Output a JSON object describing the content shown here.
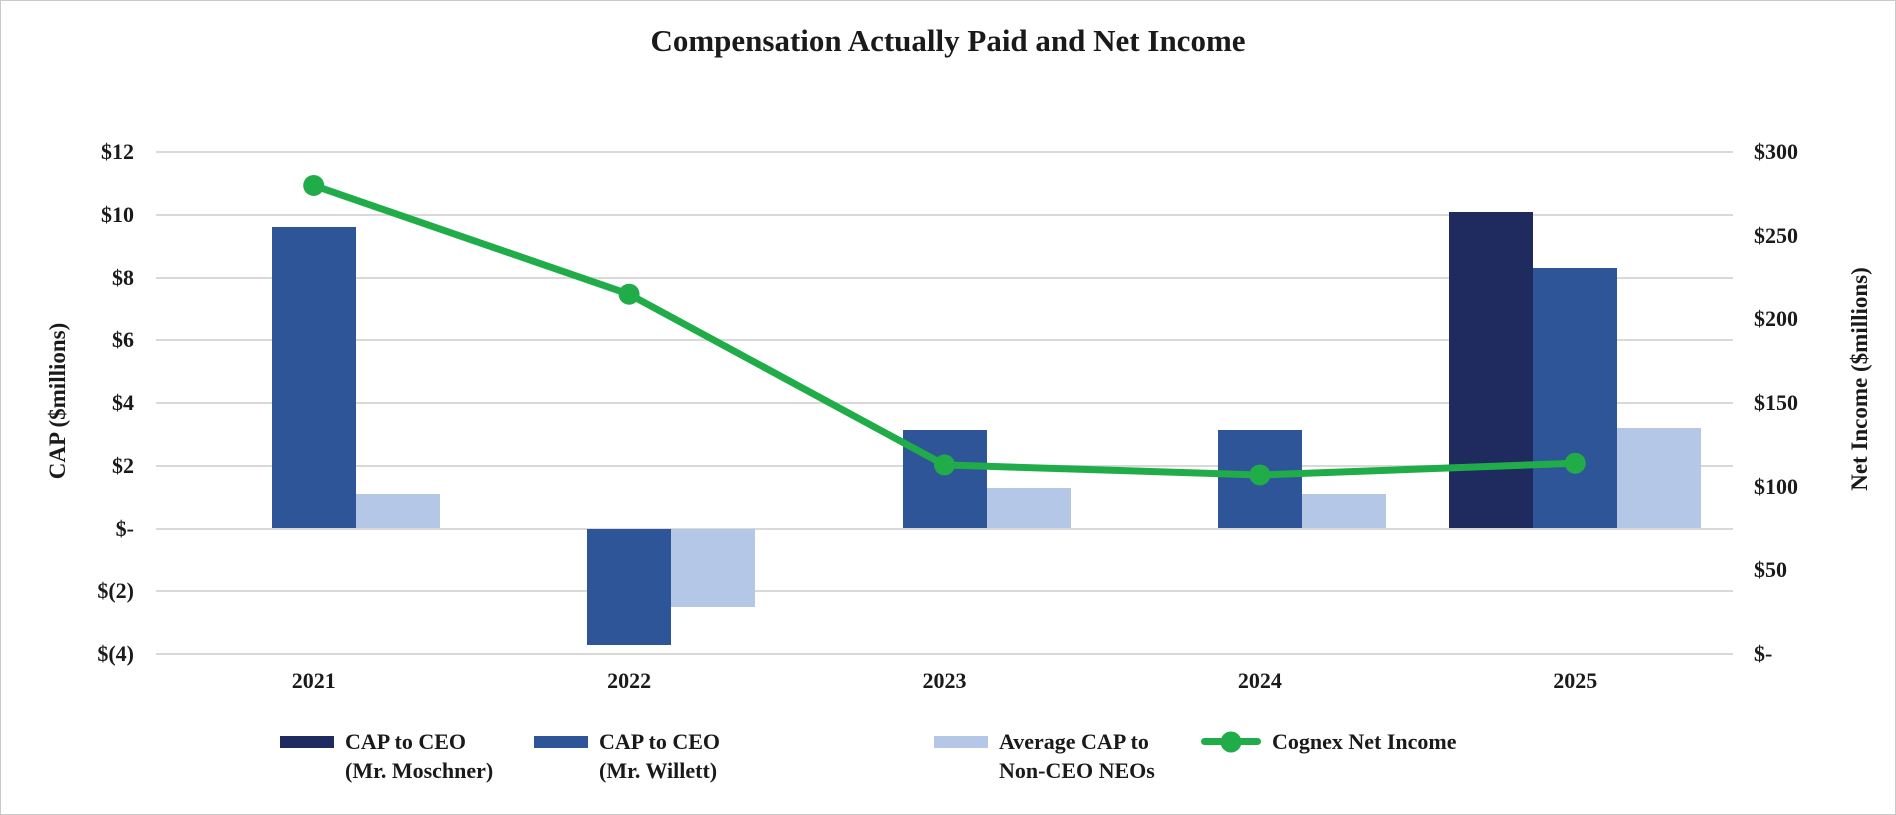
{
  "title": "Compensation Actually Paid and Net Income",
  "chart_data": {
    "type": "bar",
    "subtype": "combo-bar-line-dual-axis",
    "categories": [
      "2021",
      "2022",
      "2023",
      "2024",
      "2025"
    ],
    "series": [
      {
        "name": "CAP to CEO (Mr. Moschner)",
        "type": "bar",
        "axis": "left",
        "color": "#1f2a5f",
        "values": [
          null,
          null,
          null,
          null,
          10.1
        ]
      },
      {
        "name": "CAP to CEO (Mr. Willett)",
        "type": "bar",
        "axis": "left",
        "color": "#2e5597",
        "values": [
          9.6,
          -3.7,
          3.15,
          3.15,
          8.3
        ]
      },
      {
        "name": "Average CAP to Non-CEO NEOs",
        "type": "bar",
        "axis": "left",
        "color": "#b4c7e7",
        "values": [
          1.1,
          -2.5,
          1.3,
          1.1,
          3.2
        ]
      },
      {
        "name": "Cognex Net Income",
        "type": "line",
        "axis": "right",
        "color": "#21ac4a",
        "values": [
          280,
          215,
          113,
          107,
          114
        ]
      }
    ],
    "title": "Compensation Actually Paid and Net Income",
    "left_axis": {
      "title": "CAP ($millions)",
      "ticks": [
        "$12",
        "$10",
        "$8",
        "$6",
        "$4",
        "$2",
        "$-",
        "$(2)",
        "$(4)"
      ],
      "tick_values": [
        12,
        10,
        8,
        6,
        4,
        2,
        0,
        -2,
        -4
      ],
      "min": -4,
      "max": 12
    },
    "right_axis": {
      "title": "Net Income ($millions)",
      "ticks": [
        "$300",
        "$250",
        "$200",
        "$150",
        "$100",
        "$50",
        "$-"
      ],
      "tick_values": [
        300,
        250,
        200,
        150,
        100,
        50,
        0
      ],
      "min": 0,
      "max": 300
    },
    "grid": true,
    "gridline_color": "#d9d9d9",
    "legend_position": "bottom"
  },
  "legend": {
    "items": [
      {
        "id": "cap-ceo-moschner",
        "lines": [
          "CAP to CEO",
          "(Mr. Moschner)"
        ],
        "swatch": "bar",
        "color": "#1f2a5f"
      },
      {
        "id": "cap-ceo-willett",
        "lines": [
          "CAP to CEO",
          "(Mr. Willett)"
        ],
        "swatch": "bar",
        "color": "#2e5597"
      },
      {
        "id": "average-cap-non-ceo-neos",
        "lines": [
          "Average CAP to",
          "Non-CEO NEOs"
        ],
        "swatch": "bar",
        "color": "#b4c7e7"
      },
      {
        "id": "cognex-net-income",
        "lines": [
          "Cognex Net Income"
        ],
        "swatch": "line",
        "color": "#21ac4a"
      }
    ]
  }
}
